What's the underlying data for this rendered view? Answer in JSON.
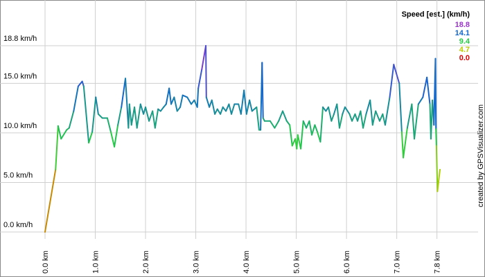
{
  "chart_data": {
    "type": "line",
    "x": [
      0,
      0.21,
      0.26,
      0.32,
      0.43,
      0.48,
      0.57,
      0.66,
      0.74,
      0.77,
      0.87,
      0.94,
      1.01,
      1.06,
      1.14,
      1.24,
      1.31,
      1.38,
      1.45,
      1.52,
      1.6,
      1.66,
      1.68,
      1.72,
      1.78,
      1.83,
      1.9,
      1.96,
      2.0,
      2.07,
      2.14,
      2.19,
      2.25,
      2.3,
      2.36,
      2.41,
      2.47,
      2.51,
      2.57,
      2.63,
      2.69,
      2.74,
      2.83,
      2.91,
      2.97,
      3.03,
      3.05,
      3.12,
      3.2,
      3.21,
      3.27,
      3.32,
      3.38,
      3.43,
      3.49,
      3.54,
      3.6,
      3.66,
      3.71,
      3.77,
      3.85,
      3.9,
      3.96,
      4.01,
      4.07,
      4.12,
      4.21,
      4.26,
      4.29,
      4.32,
      4.34,
      4.37,
      4.48,
      4.57,
      4.65,
      4.73,
      4.81,
      4.87,
      4.92,
      4.98,
      5.01,
      5.03,
      5.09,
      5.14,
      5.2,
      5.26,
      5.31,
      5.37,
      5.42,
      5.48,
      5.53,
      5.59,
      5.64,
      5.7,
      5.75,
      5.81,
      5.86,
      5.92,
      5.97,
      6.06,
      6.11,
      6.17,
      6.22,
      6.28,
      6.33,
      6.39,
      6.47,
      6.52,
      6.58,
      6.66,
      6.72,
      6.77,
      6.86,
      6.94,
      7.05,
      7.1,
      7.13,
      7.21,
      7.3,
      7.35,
      7.43,
      7.52,
      7.6,
      7.66,
      7.68,
      7.71,
      7.74,
      7.77,
      7.78,
      7.79,
      7.81,
      7.86
    ],
    "values": [
      0,
      6.3,
      10.7,
      9.4,
      10.3,
      10.5,
      12.2,
      14.7,
      15.2,
      14.7,
      9.0,
      10.1,
      13.6,
      11.9,
      11.5,
      11.5,
      10.1,
      8.6,
      10.8,
      12.6,
      15.5,
      10.5,
      12.9,
      10.8,
      12.6,
      10.5,
      12.9,
      11.9,
      12.6,
      11.2,
      12.2,
      10.5,
      12.4,
      12.2,
      12.6,
      12.9,
      14.5,
      12.9,
      13.6,
      12.2,
      12.6,
      13.8,
      13.6,
      12.9,
      13.3,
      12.6,
      14.5,
      16.4,
      18.8,
      13.6,
      12.6,
      13.3,
      11.9,
      12.4,
      11.9,
      12.6,
      12.2,
      12.9,
      11.9,
      12.9,
      12.9,
      11.9,
      14.3,
      11.9,
      13.3,
      12.2,
      12.6,
      10.3,
      10.3,
      17.1,
      11.5,
      11.2,
      11.2,
      10.5,
      11.2,
      12.2,
      11.2,
      10.8,
      8.7,
      9.4,
      8.4,
      9.8,
      8.4,
      11.2,
      10.5,
      11.2,
      9.8,
      10.8,
      10.1,
      9.1,
      12.6,
      12.2,
      12.6,
      11.2,
      11.9,
      12.9,
      10.5,
      11.9,
      12.6,
      11.9,
      11.2,
      11.9,
      11.2,
      12.2,
      10.5,
      11.9,
      13.3,
      10.8,
      12.2,
      11.2,
      11.9,
      10.8,
      13.6,
      16.9,
      15.0,
      10.1,
      7.5,
      10.5,
      12.9,
      9.4,
      12.9,
      13.6,
      15.6,
      12.9,
      9.4,
      13.3,
      10.8,
      17.5,
      10.4,
      8.7,
      4.1,
      6.3
    ],
    "xlim": [
      0,
      7.86
    ],
    "ylim": [
      0,
      18.8
    ],
    "xticks": [
      {
        "value": 0,
        "label": "0.0 km"
      },
      {
        "value": 1,
        "label": "1.0 km"
      },
      {
        "value": 2,
        "label": "2.0 km"
      },
      {
        "value": 3,
        "label": "3.0 km"
      },
      {
        "value": 4,
        "label": "4.0 km"
      },
      {
        "value": 5,
        "label": "5.0 km"
      },
      {
        "value": 6,
        "label": "6.0 km"
      },
      {
        "value": 7,
        "label": "7.0 km"
      },
      {
        "value": 7.8,
        "label": "7.8 km"
      }
    ],
    "yticks": [
      {
        "value": 0,
        "label": "0.0 km/h"
      },
      {
        "value": 5,
        "label": "5.0 km/h"
      },
      {
        "value": 10,
        "label": "10.0 km/h"
      },
      {
        "value": 15,
        "label": "15.0 km/h"
      },
      {
        "value": 18.8,
        "label": "18.8 km/h"
      }
    ],
    "grid": true,
    "legend": {
      "title": "Speed [est.] (km/h)",
      "entries": [
        {
          "value": 18.8,
          "label": "18.8",
          "color": "#9933cc"
        },
        {
          "value": 14.1,
          "label": "14.1",
          "color": "#1166cc"
        },
        {
          "value": 9.4,
          "label": "9.4",
          "color": "#22cc44"
        },
        {
          "value": 4.7,
          "label": "4.7",
          "color": "#bbcc00"
        },
        {
          "value": 0,
          "label": "0.0",
          "color": "#dd0000"
        }
      ]
    },
    "credit": "created by GPSVisualizer.com"
  }
}
